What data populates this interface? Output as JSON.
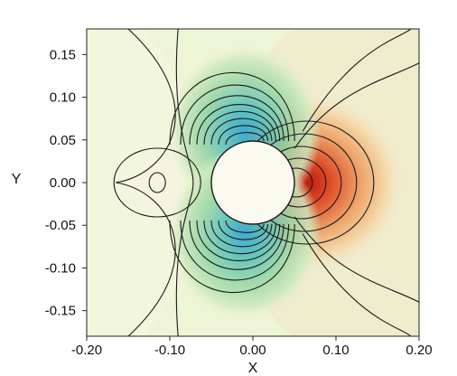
{
  "chart_data": {
    "type": "heatmap",
    "title": "",
    "xlabel": "X",
    "ylabel": "Y",
    "xlim": [
      -0.2,
      0.2
    ],
    "ylim": [
      -0.18,
      0.18
    ],
    "x_ticks": [
      -0.2,
      -0.1,
      0.0,
      0.1,
      0.2
    ],
    "x_tick_labels": [
      "-0.20",
      "-0.10",
      "0.00",
      "0.10",
      "0.20"
    ],
    "y_ticks": [
      0.15,
      0.1,
      0.05,
      0.0,
      -0.05,
      -0.1,
      -0.15
    ],
    "y_tick_labels": [
      "0.15",
      "0.10",
      "0.05",
      "0.00",
      "-0.05",
      "-0.10",
      "-0.15"
    ],
    "cylinder": {
      "center": [
        0.0,
        0.0
      ],
      "radius": 0.05,
      "fill": "#fafaf0"
    },
    "field": {
      "description_shown": "filled contours with black contour lines",
      "colormap": [
        "#2aa7d6",
        "#8fd3a8",
        "#d9ecc0",
        "#f7f6e2",
        "#f5d7a8",
        "#e8925a",
        "#c81e10"
      ],
      "peaks": [
        {
          "x": 0.05,
          "y": 0.0,
          "level": "max",
          "color": "#c81e10"
        },
        {
          "x": -0.01,
          "y": 0.05,
          "level": "min",
          "color": "#2aa7d6"
        },
        {
          "x": -0.01,
          "y": -0.05,
          "level": "min",
          "color": "#2aa7d6"
        },
        {
          "x": -0.115,
          "y": 0.0,
          "level": "local-max",
          "color": "#f5ecd2"
        }
      ]
    }
  }
}
